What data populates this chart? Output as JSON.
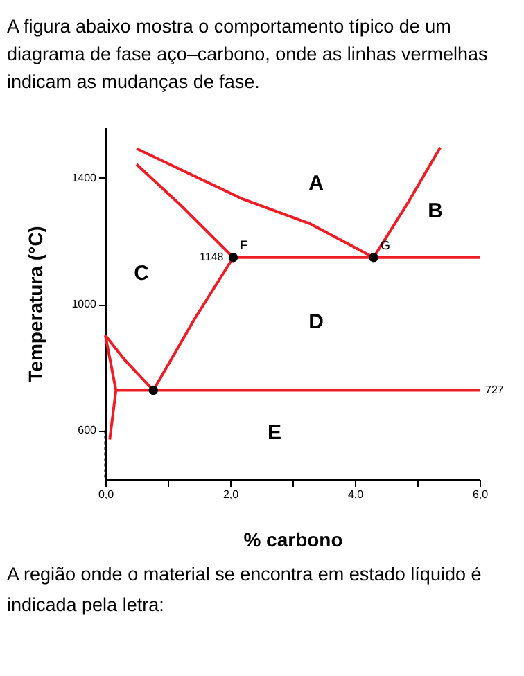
{
  "chart_data": {
    "type": "line",
    "title": "A figura abaixo mostra o comportamento típico de um diagrama de fase aço–carbono, onde as linhas vermelhas indicam as mudanças de fase.",
    "xlabel": "% carbono",
    "ylabel": "Temperatura (°C)",
    "xlim": [
      0,
      6
    ],
    "ylim": [
      445,
      1560
    ],
    "xticks": [
      {
        "value": 0,
        "label": "0,0"
      },
      {
        "value": 1,
        "label": null
      },
      {
        "value": 2,
        "label": "2,0"
      },
      {
        "value": 3,
        "label": null
      },
      {
        "value": 4,
        "label": "4,0"
      },
      {
        "value": 5,
        "label": null
      },
      {
        "value": 6,
        "label": "6,0"
      }
    ],
    "yticks": [
      600,
      1000,
      1400
    ],
    "grid": false,
    "marker": "none",
    "series": [
      {
        "color": "#ee1c25",
        "x": [
          0.5,
          2.18,
          3.29,
          4.3
        ],
        "values": [
          1493,
          1335,
          1254,
          1148
        ]
      },
      {
        "color": "#ee1c25",
        "x": [
          0.5,
          1.21,
          2.05
        ],
        "values": [
          1443,
          1313,
          1148
        ]
      },
      {
        "color": "#ee1c25",
        "x": [
          4.3,
          4.85,
          5.37
        ],
        "values": [
          1148,
          1321,
          1497
        ]
      },
      {
        "color": "#ee1c25",
        "x": [
          2.05,
          6.0
        ],
        "values": [
          1148,
          1148
        ]
      },
      {
        "color": "#ee1c25",
        "x": [
          2.05,
          1.43,
          0.77
        ],
        "values": [
          1148,
          953,
          727
        ]
      },
      {
        "color": "#ee1c25",
        "x": [
          0,
          0.32,
          0.77
        ],
        "values": [
          901,
          821,
          727
        ]
      },
      {
        "color": "#ee1c25",
        "x": [
          0.17,
          6.0
        ],
        "values": [
          727,
          727
        ]
      },
      {
        "color": "#ee1c25",
        "x": [
          0,
          0.17,
          0.07
        ],
        "values": [
          901,
          727,
          571
        ]
      },
      {
        "color": "#000000",
        "line_style": "dotted",
        "x": [
          0,
          0
        ],
        "values": [
          600,
          445
        ]
      },
      {
        "type": "scatter",
        "color": "#000000",
        "marker": "circle",
        "x": [
          2.05,
          4.3,
          0.77
        ],
        "values": [
          1148,
          1148,
          727
        ]
      }
    ],
    "annotations": [
      "A",
      "B",
      "C",
      "D",
      "E",
      {
        "text": "F",
        "x": 2.05,
        "y": 1148
      },
      {
        "text": "G",
        "x": 4.3,
        "y": 1148
      },
      {
        "text": "1148",
        "x": 2.05,
        "y": 1148
      },
      {
        "text": "727",
        "x": 6.0,
        "y": 727
      },
      "A região onde o material se encontra em estado líquido é indicada pela letra:"
    ]
  }
}
